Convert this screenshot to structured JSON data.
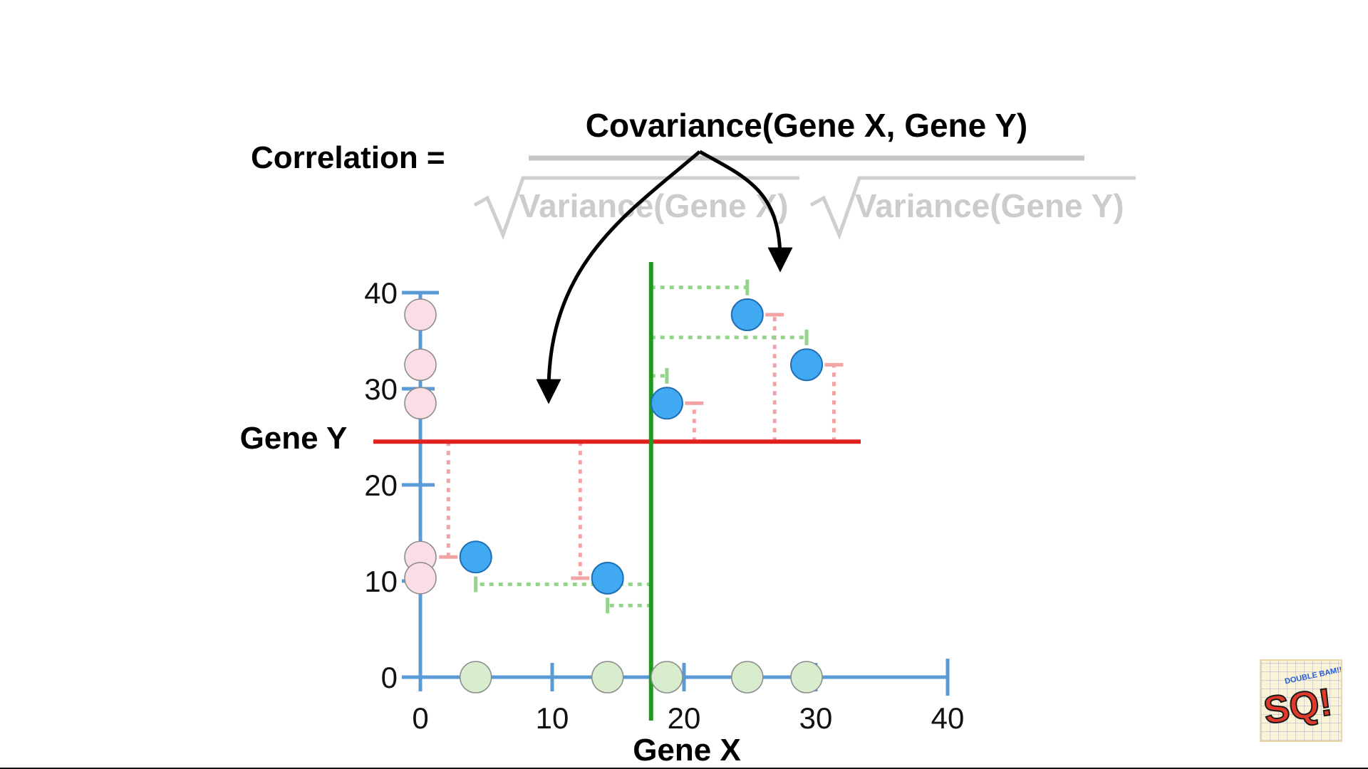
{
  "formula": {
    "lhs": "Correlation =",
    "numerator": "Covariance(Gene X, Gene Y)",
    "denominator_x": "Variance(Gene X)",
    "denominator_y": "Variance(Gene Y)"
  },
  "logo": {
    "text_main": "SQ!",
    "text_small": "DOUBLE BAM!!"
  },
  "colors": {
    "axis": "#5b9bd5",
    "point_fill": "#41a9f2",
    "point_stroke": "#1f6fb5",
    "mean_x_line": "#1e9a1e",
    "mean_y_line": "#e0211e",
    "x_projection": "#d7edcd",
    "y_projection": "#fbdde5",
    "x_distance": "#93d48a",
    "y_distance": "#f2a3a3",
    "formula_gray": "#cccccc"
  },
  "chart_data": {
    "type": "scatter",
    "xlabel": "Gene X",
    "ylabel": "Gene Y",
    "xlim": [
      0,
      40
    ],
    "ylim": [
      0,
      40
    ],
    "x_ticks": [
      "0",
      "10",
      "20",
      "30",
      "40"
    ],
    "y_ticks": [
      "0",
      "10",
      "20",
      "30",
      "40"
    ],
    "mean_x": 17.5,
    "mean_y": 24.5,
    "grid": false,
    "points": [
      {
        "x": 4.2,
        "y": 12.5
      },
      {
        "x": 14.2,
        "y": 10.3
      },
      {
        "x": 18.7,
        "y": 28.5
      },
      {
        "x": 24.8,
        "y": 37.7
      },
      {
        "x": 29.3,
        "y": 32.5
      }
    ]
  }
}
